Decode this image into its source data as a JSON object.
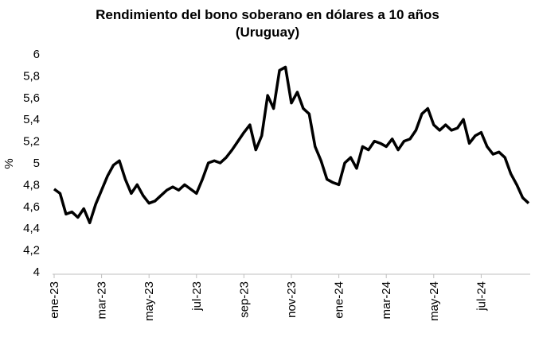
{
  "chart_data": {
    "type": "line",
    "title": "Rendimiento del bono soberano en dólares a 10 años",
    "subtitle": "(Uruguay)",
    "y_label": "%",
    "categories": [
      "ene-23",
      null,
      null,
      null,
      null,
      null,
      null,
      null,
      "mar-23",
      null,
      null,
      null,
      null,
      null,
      null,
      null,
      "may-23",
      null,
      null,
      null,
      null,
      null,
      null,
      null,
      "jul-23",
      null,
      null,
      null,
      null,
      null,
      null,
      null,
      "sep-23",
      null,
      null,
      null,
      null,
      null,
      null,
      null,
      "nov-23",
      null,
      null,
      null,
      null,
      null,
      null,
      null,
      "ene-24",
      null,
      null,
      null,
      null,
      null,
      null,
      null,
      "mar-24",
      null,
      null,
      null,
      null,
      null,
      null,
      null,
      "may-24",
      null,
      null,
      null,
      null,
      null,
      null,
      null,
      "jul-24",
      null,
      null,
      null,
      null,
      null,
      null,
      null,
      null
    ],
    "values": [
      4.76,
      4.72,
      4.53,
      4.55,
      4.5,
      4.58,
      4.45,
      4.62,
      4.75,
      4.88,
      4.98,
      5.02,
      4.85,
      4.72,
      4.8,
      4.7,
      4.63,
      4.65,
      4.7,
      4.75,
      4.78,
      4.75,
      4.8,
      4.76,
      4.72,
      4.85,
      5.0,
      5.02,
      5.0,
      5.05,
      5.12,
      5.2,
      5.28,
      5.35,
      5.12,
      5.25,
      5.62,
      5.5,
      5.85,
      5.88,
      5.55,
      5.65,
      5.5,
      5.45,
      5.15,
      5.02,
      4.85,
      4.82,
      4.8,
      5.0,
      5.05,
      4.95,
      5.15,
      5.12,
      5.2,
      5.18,
      5.15,
      5.22,
      5.12,
      5.2,
      5.22,
      5.3,
      5.45,
      5.5,
      5.35,
      5.3,
      5.35,
      5.3,
      5.32,
      5.4,
      5.18,
      5.25,
      5.28,
      5.15,
      5.08,
      5.1,
      5.05,
      4.9,
      4.8,
      4.68,
      4.63
    ],
    "color": "#000000",
    "ylim": [
      4,
      6
    ],
    "yticks": [
      4,
      {
        "value": 4.2,
        "label": "4,2"
      },
      {
        "value": 4.4,
        "label": "4,4"
      },
      {
        "value": 4.6,
        "label": "4,6"
      },
      {
        "value": 4.8,
        "label": "4,8"
      },
      5,
      {
        "value": 5.2,
        "label": "5,2"
      },
      {
        "value": 5.4,
        "label": "5,4"
      },
      {
        "value": 5.6,
        "label": "5,6"
      },
      {
        "value": 5.8,
        "label": "5,8"
      },
      6
    ],
    "grid": false
  }
}
